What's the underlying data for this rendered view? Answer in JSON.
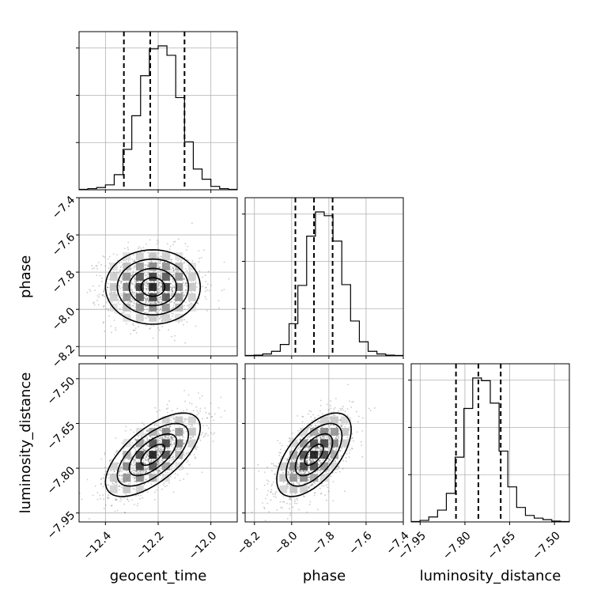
{
  "chart_data": {
    "type": "corner",
    "params": [
      "geocent_time",
      "phase",
      "luminosity_distance"
    ],
    "axis_labels": [
      "geocent_time",
      "phase",
      "luminosity_distance"
    ],
    "ranges": [
      [
        -12.5,
        -11.9
      ],
      [
        -8.25,
        -7.4
      ],
      [
        -7.98,
        -7.45
      ]
    ],
    "ticks": [
      {
        "values": [
          -12.4,
          -12.2,
          -12.0
        ],
        "labels": [
          "−12.4",
          "−12.2",
          "−12.0"
        ]
      },
      {
        "values": [
          -8.2,
          -8.0,
          -7.8,
          -7.6,
          -7.4
        ],
        "labels": [
          "−8.2",
          "−8.0",
          "−7.8",
          "−7.6",
          "−7.4"
        ]
      },
      {
        "values": [
          -7.95,
          -7.8,
          -7.65,
          -7.5
        ],
        "labels": [
          "−7.95",
          "−7.80",
          "−7.65",
          "−7.50"
        ]
      }
    ],
    "quantiles": [
      [
        -12.33,
        -12.23,
        -12.1
      ],
      [
        -7.98,
        -7.88,
        -7.78
      ],
      [
        -7.83,
        -7.755,
        -7.68
      ]
    ],
    "histograms": [
      {
        "edges_range": [
          -12.5,
          -11.9
        ],
        "counts": [
          1,
          3,
          6,
          13,
          40,
          107,
          196,
          302,
          373,
          381,
          356,
          244,
          127,
          55,
          28,
          9,
          3,
          1
        ]
      },
      {
        "edges_range": [
          -8.25,
          -7.4
        ],
        "counts": [
          1,
          2,
          5,
          12,
          30,
          85,
          186,
          316,
          380,
          370,
          303,
          188,
          92,
          37,
          12,
          5,
          2,
          1
        ]
      },
      {
        "edges_range": [
          -7.98,
          -7.45
        ],
        "counts": [
          1,
          4,
          13,
          31,
          75,
          170,
          298,
          378,
          371,
          312,
          186,
          92,
          38,
          17,
          10,
          6,
          2,
          1
        ]
      }
    ],
    "gaussian_2d": {
      "means": [
        -12.22,
        -7.88,
        -7.755
      ],
      "sigmas": [
        0.09,
        0.1,
        0.07
      ],
      "correlations": [
        [
          1,
          0,
          0.65
        ],
        [
          0,
          1,
          0.6
        ],
        [
          0.65,
          0.6,
          1
        ]
      ]
    },
    "grid": true,
    "contours": true
  }
}
